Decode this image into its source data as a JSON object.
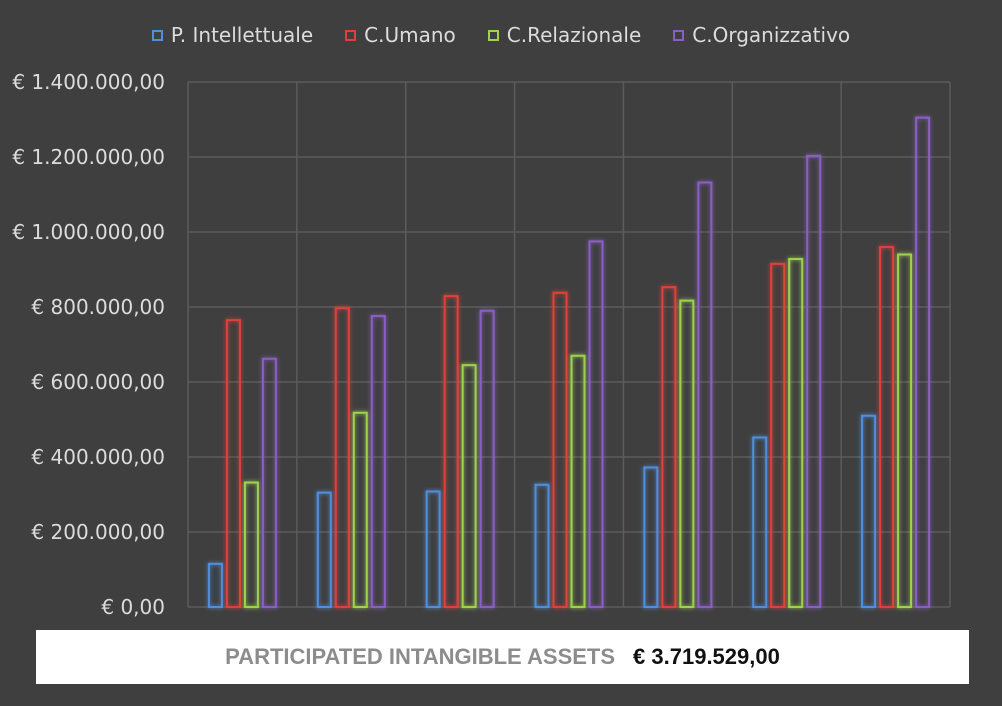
{
  "chart_data": {
    "type": "bar",
    "categories": [
      "",
      "",
      "",
      "",
      "",
      "",
      ""
    ],
    "series": [
      {
        "name": "P. Intellettuale",
        "color": "#4f8fdc",
        "values": [
          115000,
          305000,
          308000,
          326000,
          372000,
          452000,
          510000
        ]
      },
      {
        "name": "C.Umano",
        "color": "#e0403a",
        "values": [
          765000,
          797000,
          829000,
          838000,
          853000,
          915000,
          960000
        ]
      },
      {
        "name": "C.Relazionale",
        "color": "#9fd34e",
        "values": [
          332000,
          518000,
          645000,
          670000,
          817000,
          928000,
          940000
        ]
      },
      {
        "name": "C.Organizzativo",
        "color": "#8a5fc4",
        "values": [
          662000,
          776000,
          790000,
          975000,
          1132000,
          1203000,
          1305000
        ]
      }
    ],
    "ylim": [
      0,
      1400000
    ],
    "yticks": [
      {
        "value": 0,
        "label": "€ 0,00"
      },
      {
        "value": 200000,
        "label": "€ 200.000,00"
      },
      {
        "value": 400000,
        "label": "€ 400.000,00"
      },
      {
        "value": 600000,
        "label": "€ 600.000,00"
      },
      {
        "value": 800000,
        "label": "€ 800.000,00"
      },
      {
        "value": 1000000,
        "label": "€ 1.000.000,00"
      },
      {
        "value": 1200000,
        "label": "€ 1.200.000,00"
      },
      {
        "value": 1400000,
        "label": "€ 1.400.000,00"
      }
    ],
    "grid": true,
    "legend_position": "top"
  },
  "footer": {
    "label": "PARTICIPATED INTANGIBLE ASSETS",
    "value": "€ 3.719.529,00"
  }
}
